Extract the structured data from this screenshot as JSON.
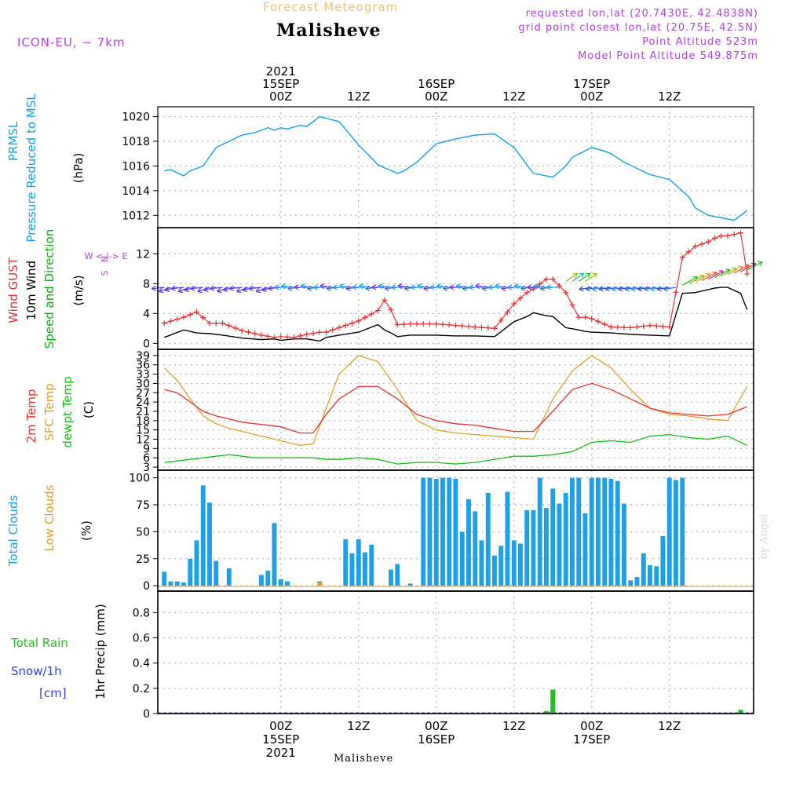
{
  "header": {
    "subtitle": "Forecast Meteogram",
    "location": "Malisheve",
    "model": "ICON-EU, ~ 7km",
    "requested": "requested lon,lat (20.7430E, 42.4838N)",
    "grid_point": "grid point closest lon,lat (20.75E, 42.5N)",
    "point_alt": "Point Altitude 523m",
    "model_alt": "Model Point Altitude 549.875m"
  },
  "footer": {
    "location": "Malisheve",
    "watermark": "by Angel"
  },
  "colors": {
    "subtitle": "#f0c070",
    "meta": "#b040e0",
    "pressure": "#0fa0e8",
    "gust": "#e83030",
    "wind10": "#000000",
    "wind_dir": "#10b010",
    "t2m": "#e83030",
    "sfc": "#e0a020",
    "dewpt": "#10c010",
    "total_clouds": "#1ea0e8",
    "low_clouds": "#e0a020",
    "rain": "#22c022",
    "snow": "#3040e0",
    "grid": "#b4b4b4"
  },
  "chart_data": [
    {
      "type": "line",
      "title": "PRMSL Pressure Reduced to MSL",
      "ylabel_lines": [
        "PRMSL",
        "Pressure Reduced to MSL"
      ],
      "unit": "(hPa)",
      "ylim": [
        1011,
        1020.8
      ],
      "yticks": [
        1012,
        1014,
        1016,
        1018,
        1020
      ],
      "x_hours": [
        -18,
        -17,
        -15,
        -14,
        -12,
        -10,
        -8,
        -6,
        -4,
        -2,
        -1,
        0,
        1,
        3,
        4,
        6,
        9,
        12,
        15,
        18,
        19,
        21,
        24,
        27,
        30,
        33,
        36,
        39,
        42,
        44,
        45,
        48,
        50,
        51,
        53,
        57,
        60,
        63,
        64,
        66,
        70,
        72
      ],
      "series": [
        {
          "name": "PRMSL",
          "values": [
            1015.6,
            1015.7,
            1015.2,
            1015.6,
            1016.0,
            1017.5,
            1018.0,
            1018.5,
            1018.7,
            1019.1,
            1018.9,
            1019.1,
            1019.0,
            1019.3,
            1019.2,
            1020.0,
            1019.6,
            1017.7,
            1016.1,
            1015.4,
            1015.6,
            1016.3,
            1017.8,
            1018.2,
            1018.5,
            1018.6,
            1017.5,
            1015.4,
            1015.1,
            1016.0,
            1016.7,
            1017.5,
            1017.2,
            1017.0,
            1016.3,
            1015.3,
            1014.9,
            1013.5,
            1012.6,
            1012.0,
            1011.6,
            1012.4
          ]
        }
      ]
    },
    {
      "type": "line",
      "title": "Wind GUST, 10m Wind Speed and Direction",
      "ylabel_lines": [
        "Wind GUST",
        "10m Wind",
        "Speed and Direction"
      ],
      "unit": "(m/s)",
      "compass": [
        "N",
        "W <-|-> E",
        "S"
      ],
      "ylim": [
        -0.8,
        15.5
      ],
      "yticks": [
        0,
        4,
        8,
        12
      ],
      "x_hours": [
        -18,
        -15,
        -13,
        -11,
        -9,
        -6,
        -3,
        -1,
        0,
        2,
        4,
        6,
        7,
        9,
        12,
        15,
        16,
        17,
        18,
        20,
        24,
        27,
        30,
        33,
        36,
        38,
        39,
        41,
        42,
        44,
        46,
        47,
        48,
        51,
        54,
        57,
        60,
        62,
        64,
        66,
        67,
        68,
        69,
        71,
        72
      ],
      "series": [
        {
          "name": "Wind GUST",
          "values": [
            2.7,
            3.5,
            4.2,
            2.7,
            2.7,
            1.7,
            1.1,
            0.8,
            0.9,
            0.8,
            1.2,
            1.5,
            1.5,
            2.1,
            3.0,
            4.4,
            5.8,
            4.5,
            2.5,
            2.6,
            2.6,
            2.4,
            2.2,
            2.0,
            5.3,
            6.8,
            7.3,
            8.6,
            8.6,
            6.8,
            3.5,
            3.5,
            3.3,
            2.2,
            2.1,
            2.4,
            2.2,
            11.5,
            13.0,
            13.6,
            14.1,
            14.4,
            14.4,
            14.8,
            9.3
          ]
        },
        {
          "name": "10m Wind",
          "values": [
            0.8,
            1.8,
            1.4,
            1.3,
            1.1,
            0.7,
            0.5,
            0.6,
            0.4,
            0.6,
            0.6,
            0.3,
            0.8,
            1.1,
            1.5,
            2.5,
            1.8,
            1.4,
            0.9,
            1.1,
            1.1,
            1.0,
            1.0,
            0.9,
            2.9,
            3.6,
            4.1,
            3.7,
            3.6,
            2.1,
            1.8,
            1.6,
            1.5,
            1.4,
            1.2,
            1.1,
            1.0,
            6.7,
            6.8,
            7.2,
            7.4,
            7.5,
            7.5,
            6.7,
            4.5
          ]
        }
      ],
      "direction_arrows": "colored wind-direction barbs along ~7.5 m/s"
    },
    {
      "type": "line",
      "title": "2m Temp, SFC Temp, dewpt Temp",
      "ylabel_lines": [
        "2m Temp",
        "SFC Temp",
        "dewpt Temp"
      ],
      "unit": "(C)",
      "ylim": [
        2,
        41
      ],
      "yticks": [
        3,
        6,
        9,
        12,
        15,
        18,
        21,
        24,
        27,
        30,
        33,
        36,
        39
      ],
      "ytick_labels": [
        "3",
        "6",
        "9",
        "12",
        "15",
        "18",
        "21",
        "24",
        "27",
        "30",
        "33",
        "36",
        "39"
      ],
      "x_hours": [
        -18,
        -16,
        -14,
        -12,
        -10,
        -8,
        -6,
        -4,
        -2,
        0,
        3,
        5,
        7,
        9,
        12,
        15,
        18,
        21,
        24,
        27,
        30,
        33,
        36,
        39,
        42,
        45,
        48,
        51,
        54,
        57,
        60,
        63,
        66,
        69,
        72
      ],
      "series": [
        {
          "name": "2m Temp",
          "values": [
            28,
            27,
            24,
            21,
            19.5,
            18.5,
            17.5,
            17,
            16.5,
            16,
            14,
            14,
            20,
            25,
            29,
            29,
            25,
            20,
            18,
            17,
            16.5,
            15.5,
            14.5,
            14.5,
            21,
            28,
            30,
            28,
            25,
            22,
            20.5,
            20,
            19.5,
            20,
            22.5
          ]
        },
        {
          "name": "SFC Temp",
          "values": [
            35,
            31,
            25,
            19.5,
            17,
            15.5,
            14.5,
            13.5,
            12.5,
            11.5,
            10,
            10.5,
            22,
            33,
            39,
            37,
            28,
            18,
            15,
            14,
            13.5,
            13,
            12.5,
            12,
            25,
            34,
            39,
            35,
            28,
            22,
            20,
            19.5,
            18.5,
            18,
            29
          ]
        },
        {
          "name": "dewpt Temp",
          "values": [
            4.5,
            5,
            5.5,
            6,
            6.5,
            7,
            6.5,
            6,
            6,
            6,
            6,
            6,
            5.5,
            5.5,
            6,
            5.5,
            4,
            4.5,
            4.5,
            4,
            4.5,
            5.5,
            6.5,
            6.5,
            7,
            8,
            11,
            11.5,
            11,
            13,
            13.5,
            12.5,
            12,
            13,
            10
          ]
        }
      ]
    },
    {
      "type": "bar",
      "title": "Total Clouds, Low Clouds",
      "ylabel_lines": [
        "Total Clouds",
        "Low Clouds"
      ],
      "unit": "(%)",
      "ylim": [
        -5,
        107
      ],
      "yticks": [
        0,
        25,
        50,
        75,
        100
      ],
      "x_start_hour": -18,
      "step_hours": 1,
      "series": [
        {
          "name": "Total Clouds",
          "values": [
            13,
            4,
            4,
            3,
            25,
            42,
            93,
            77,
            23,
            0,
            16,
            0,
            0,
            0,
            0,
            10,
            14,
            58,
            6,
            4,
            0,
            0,
            0,
            0,
            4,
            0,
            0,
            0,
            43,
            30,
            43,
            31,
            38,
            0,
            0,
            15,
            20,
            0,
            2,
            0,
            100,
            100,
            99,
            100,
            100,
            99,
            50,
            80,
            69,
            42,
            86,
            28,
            37,
            87,
            42,
            39,
            70,
            70,
            100,
            72,
            90,
            76,
            86,
            100,
            100,
            67,
            100,
            100,
            100,
            99,
            97,
            76,
            5,
            8,
            30,
            19,
            18,
            46,
            100,
            98,
            100
          ]
        },
        {
          "name": "Low Clouds",
          "values": [
            0,
            0,
            0,
            0,
            0,
            0,
            0,
            0,
            0,
            0,
            0,
            0,
            0,
            0,
            0,
            0,
            0,
            0,
            0,
            0,
            0,
            0,
            0,
            0,
            3,
            0,
            0,
            0,
            0,
            0,
            0,
            0,
            0,
            0,
            0,
            0,
            0,
            0,
            0,
            0,
            0,
            0,
            0,
            0,
            0,
            0,
            0,
            0,
            0,
            0,
            0,
            0,
            0,
            0,
            0,
            0,
            0,
            0,
            0,
            0,
            0,
            0,
            0,
            0,
            0,
            0,
            0,
            0,
            0,
            0,
            0,
            0,
            0,
            0,
            0,
            0,
            0,
            0,
            0,
            0,
            0
          ]
        }
      ]
    },
    {
      "type": "bar",
      "title": "1hr Precip",
      "ylabel_lines": [
        "Total  Rain",
        "Snow/1h",
        "[cm]"
      ],
      "unit": "1hr Precip (mm)",
      "ylim": [
        0,
        0.97
      ],
      "yticks": [
        0,
        0.2,
        0.4,
        0.6,
        0.8
      ],
      "ytick_labels": [
        "0",
        "0.2",
        "0.4",
        "0.6",
        "0.8"
      ],
      "x_hours": [
        41,
        42,
        71
      ],
      "series": [
        {
          "name": "Total Rain",
          "values": [
            0.02,
            0.19,
            0.03
          ]
        }
      ]
    }
  ],
  "time_axis": {
    "xlim_hours": [
      -19,
      73
    ],
    "gridlines_hours": [
      0,
      12,
      24,
      36,
      48,
      60
    ],
    "top_labels": [
      {
        "hour": 0,
        "lines": [
          "2021",
          "15SEP",
          "00Z"
        ]
      },
      {
        "hour": 12,
        "lines": [
          "12Z"
        ]
      },
      {
        "hour": 24,
        "lines": [
          "16SEP",
          "00Z"
        ]
      },
      {
        "hour": 36,
        "lines": [
          "12Z"
        ]
      },
      {
        "hour": 48,
        "lines": [
          "17SEP",
          "00Z"
        ]
      },
      {
        "hour": 60,
        "lines": [
          "12Z"
        ]
      }
    ],
    "bottom_labels": [
      {
        "hour": 0,
        "lines": [
          "00Z",
          "15SEP",
          "2021"
        ]
      },
      {
        "hour": 12,
        "lines": [
          "12Z"
        ]
      },
      {
        "hour": 24,
        "lines": [
          "00Z",
          "16SEP"
        ]
      },
      {
        "hour": 36,
        "lines": [
          "12Z"
        ]
      },
      {
        "hour": 48,
        "lines": [
          "00Z",
          "17SEP"
        ]
      },
      {
        "hour": 60,
        "lines": [
          "12Z"
        ]
      }
    ]
  }
}
